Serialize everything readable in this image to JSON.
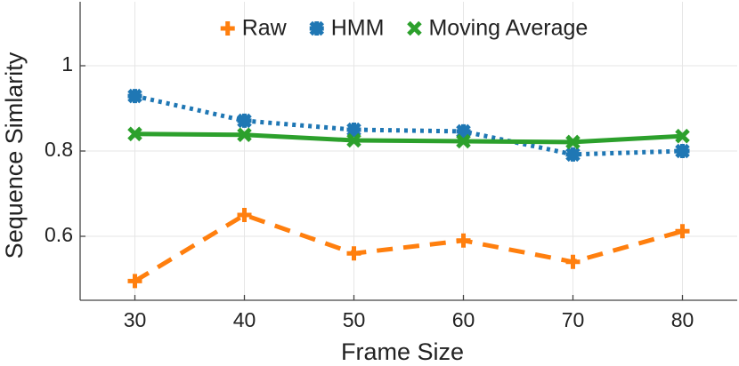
{
  "chart_data": {
    "type": "line",
    "x": [
      30,
      40,
      50,
      60,
      70,
      80
    ],
    "series": [
      {
        "name": "Raw",
        "color": "#ff7f0e",
        "line_style": "dashed",
        "marker": "plus",
        "values": [
          0.495,
          0.65,
          0.56,
          0.59,
          0.54,
          0.612
        ]
      },
      {
        "name": "HMM",
        "color": "#1f77b4",
        "line_style": "dotted",
        "marker": "asterisk",
        "values": [
          0.929,
          0.871,
          0.85,
          0.846,
          0.792,
          0.8
        ]
      },
      {
        "name": "Moving Average",
        "color": "#2ca02c",
        "line_style": "solid",
        "marker": "x",
        "values": [
          0.84,
          0.838,
          0.825,
          0.823,
          0.821,
          0.835
        ]
      }
    ],
    "x_label": "Frame Size",
    "y_label": "Sequence Simlarity",
    "xlim": [
      25,
      85
    ],
    "xticks": [
      30,
      40,
      50,
      60,
      70,
      80
    ],
    "ylim": [
      0.45,
      1.15
    ],
    "yticks": [
      0.6,
      0.8,
      1
    ],
    "grid": true,
    "legend": "top"
  }
}
